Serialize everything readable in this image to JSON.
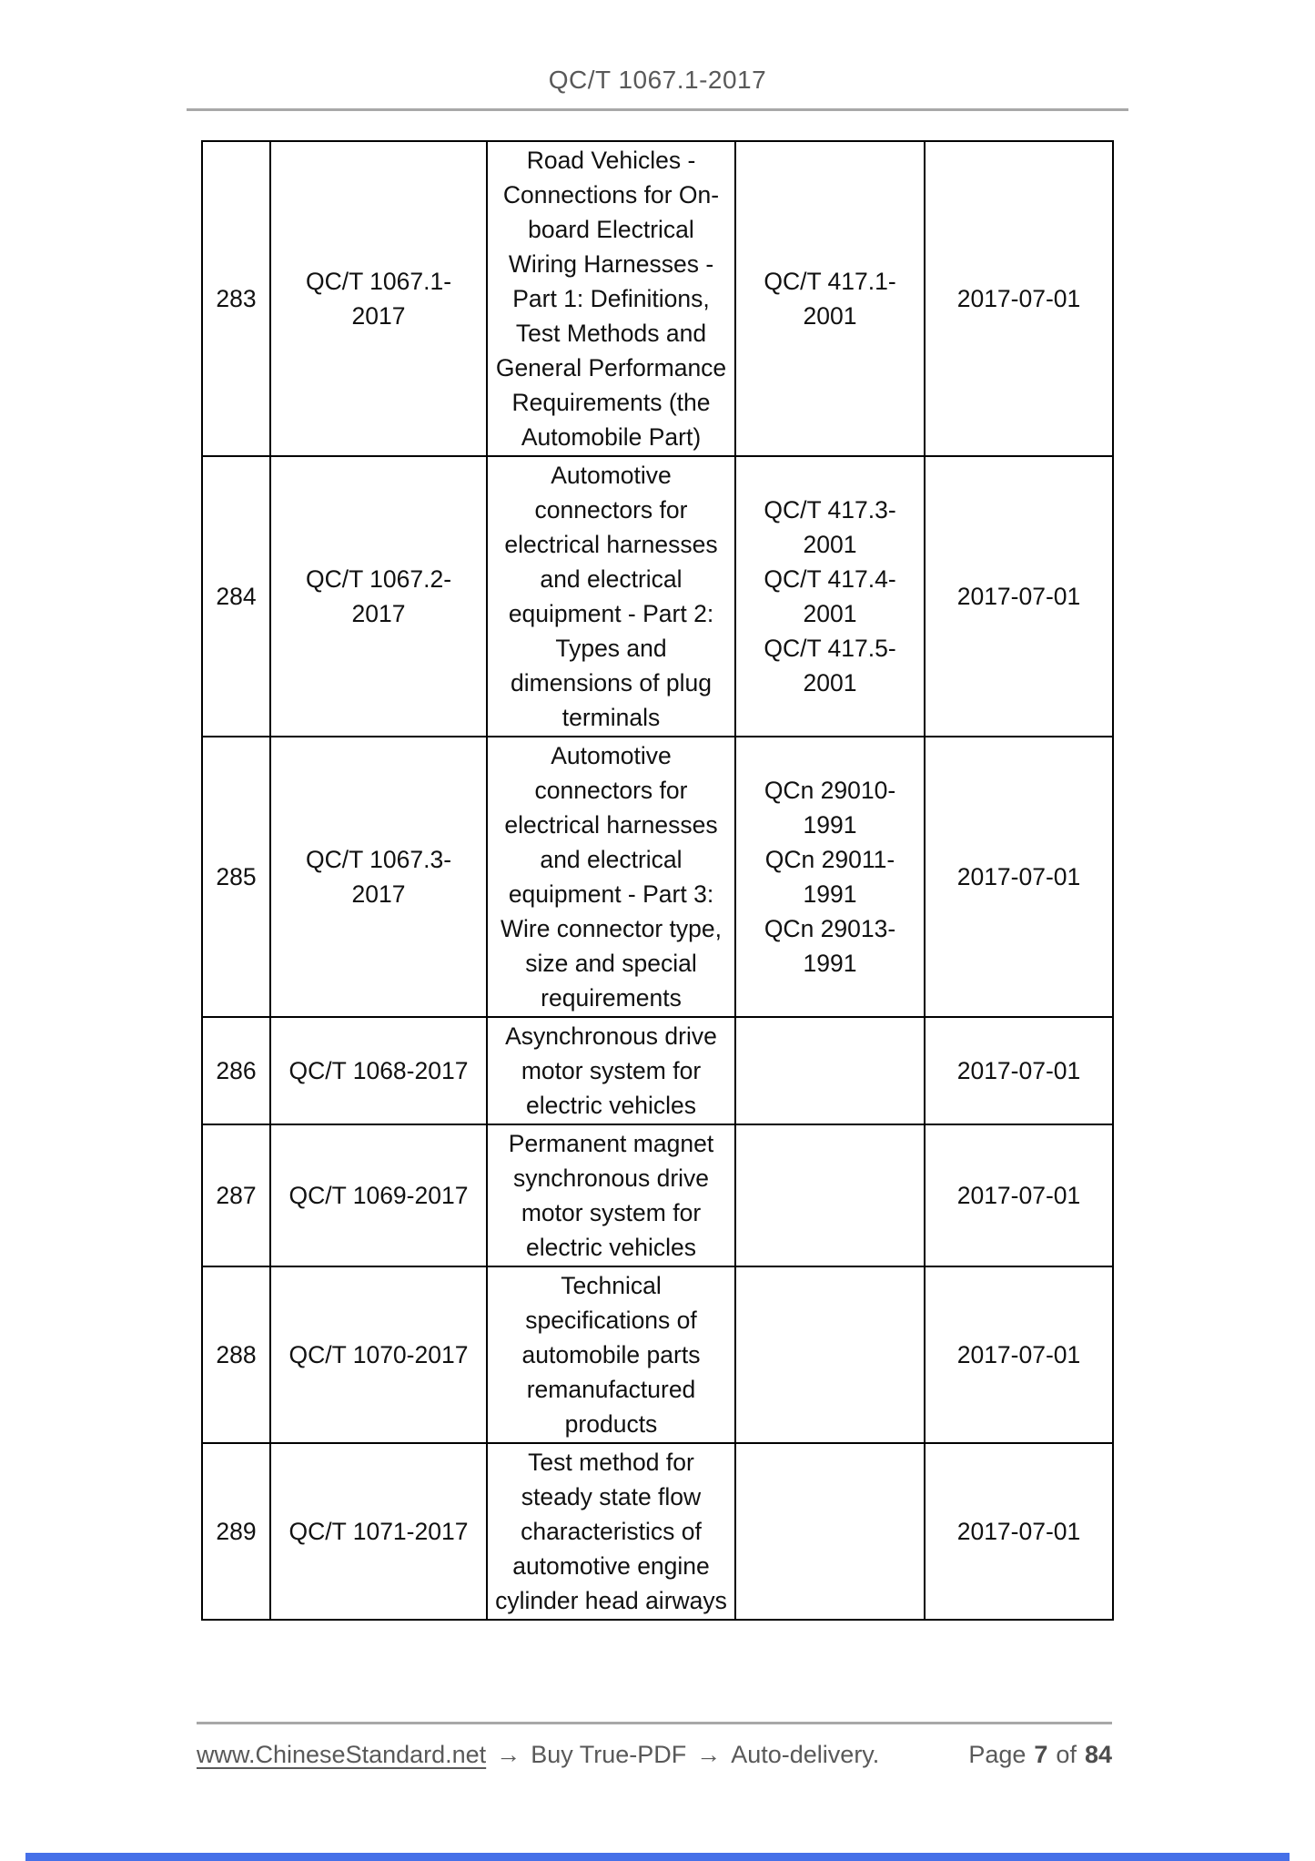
{
  "header": {
    "title": "QC/T 1067.1-2017"
  },
  "table": {
    "rows": [
      {
        "num": "283",
        "std": "QC/T 1067.1-\n2017",
        "title": "Road Vehicles -\nConnections for On-\nboard Electrical\nWiring Harnesses -\nPart 1: Definitions,\nTest Methods and\nGeneral Performance\nRequirements (the\nAutomobile Part)",
        "refs": "QC/T 417.1-\n2001",
        "date": "2017-07-01"
      },
      {
        "num": "284",
        "std": "QC/T 1067.2-\n2017",
        "title": "Automotive\nconnectors for\nelectrical harnesses\nand electrical\nequipment - Part 2:\nTypes and\ndimensions of plug\nterminals",
        "refs": "QC/T 417.3-\n2001\nQC/T 417.4-\n2001\nQC/T 417.5-\n2001",
        "date": "2017-07-01"
      },
      {
        "num": "285",
        "std": "QC/T 1067.3-\n2017",
        "title": "Automotive\nconnectors for\nelectrical harnesses\nand electrical\nequipment - Part 3:\nWire connector type,\nsize and special\nrequirements",
        "refs": "QCn 29010-\n1991\nQCn 29011-\n1991\nQCn 29013-\n1991",
        "date": "2017-07-01"
      },
      {
        "num": "286",
        "std": "QC/T 1068-2017",
        "title": "Asynchronous drive\nmotor system for\nelectric vehicles",
        "refs": "",
        "date": "2017-07-01"
      },
      {
        "num": "287",
        "std": "QC/T 1069-2017",
        "title": "Permanent magnet\nsynchronous drive\nmotor system for\nelectric vehicles",
        "refs": "",
        "date": "2017-07-01"
      },
      {
        "num": "288",
        "std": "QC/T 1070-2017",
        "title": "Technical\nspecifications of\nautomobile parts\nremanufactured\nproducts",
        "refs": "",
        "date": "2017-07-01"
      },
      {
        "num": "289",
        "std": "QC/T 1071-2017",
        "title": "Test method for\nsteady state flow\ncharacteristics of\nautomotive engine\ncylinder head airways",
        "refs": "",
        "date": "2017-07-01"
      }
    ]
  },
  "footer": {
    "link": "www.ChineseStandard.net",
    "arrow": "→",
    "buy_text": "Buy True-PDF",
    "delivery_text": "Auto-delivery.",
    "page_label": "Page",
    "page_current": "7",
    "of_label": "of",
    "page_total": "84"
  },
  "colors": {
    "text": "#111111",
    "muted_text": "#595959",
    "rule": "#a8a8a8",
    "bottom_bar": "#4670e8"
  }
}
